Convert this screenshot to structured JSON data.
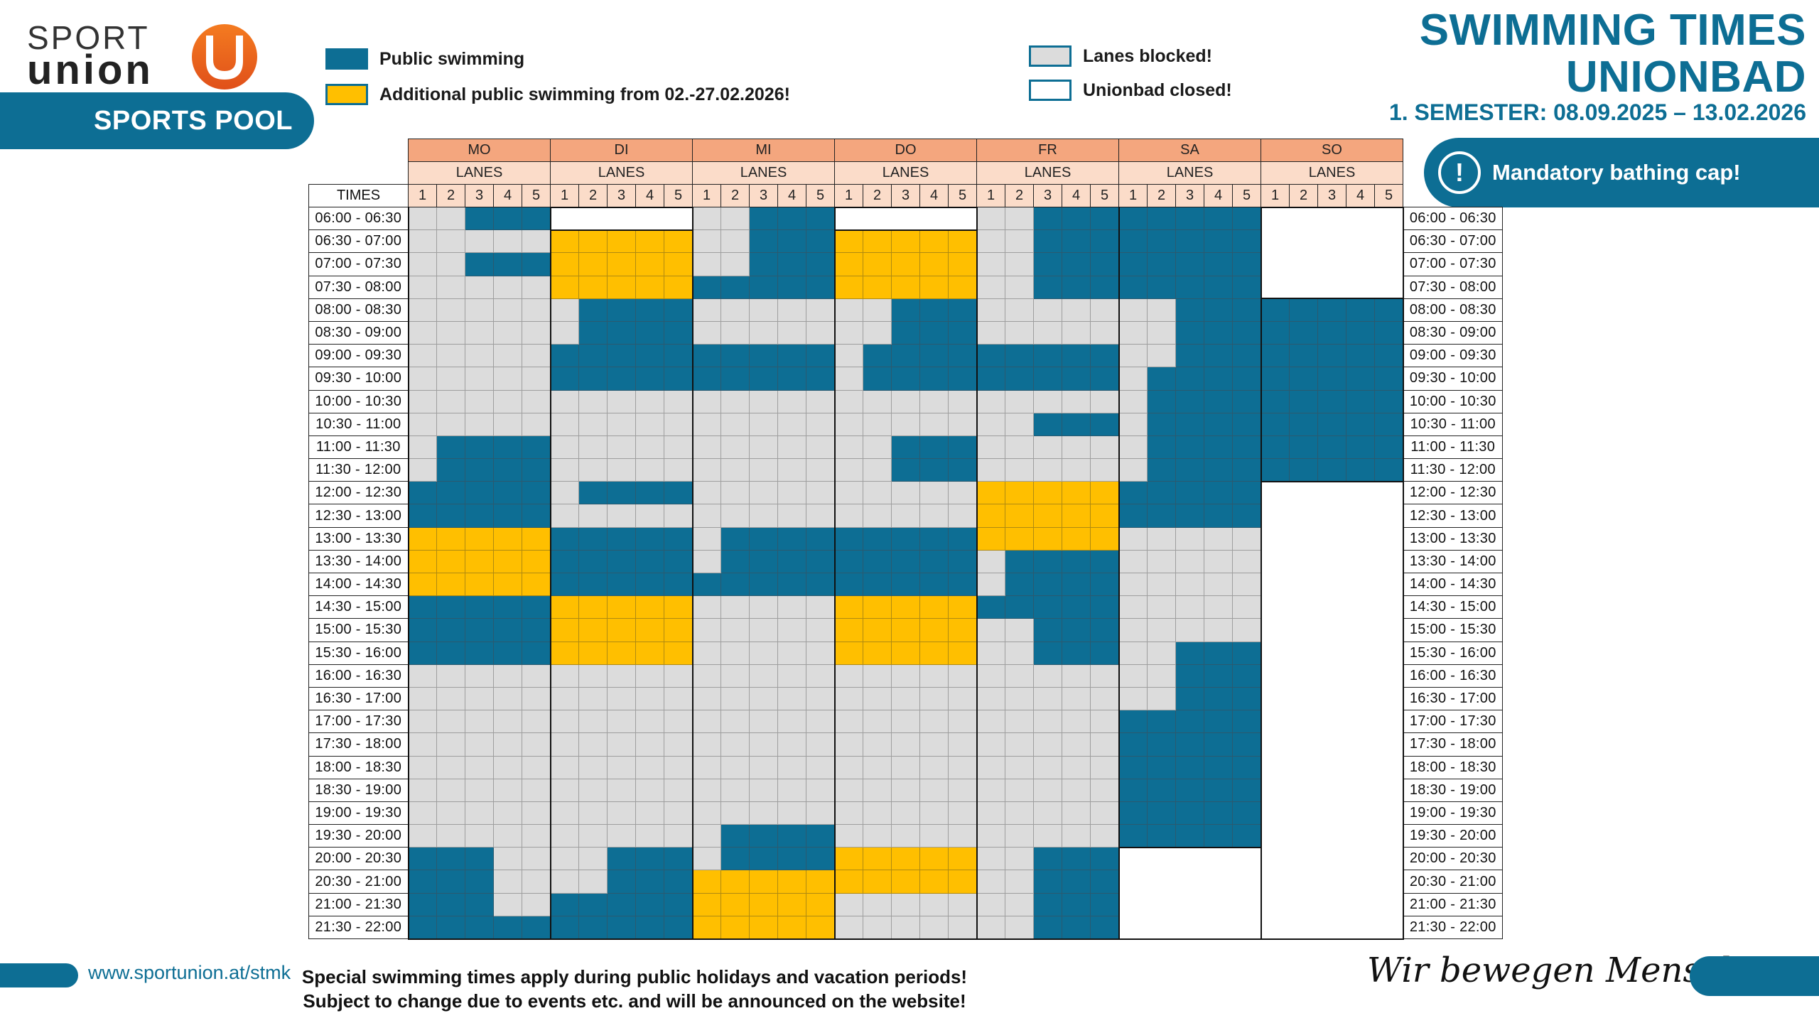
{
  "logo": {
    "line1": "SPORT",
    "line2": "union"
  },
  "pool_label": "SPORTS POOL",
  "legend": {
    "public": "Public swimming",
    "additional": "Additional public swimming from 02.-27.02.2026!",
    "blocked": "Lanes blocked!",
    "closed": "Unionbad closed!"
  },
  "title": {
    "line1": "SWIMMING TIMES",
    "line2": "UNIONBAD",
    "semester": "1. SEMESTER: 08.09.2025 – 13.02.2026"
  },
  "cap_notice": "Mandatory bathing cap!",
  "colors": {
    "brand": "#0d6e94",
    "public": "#0d6e94",
    "additional": "#ffbf00",
    "blocked": "#dcdcdc",
    "closed": "#ffffff",
    "day_header": "#f4a67e",
    "lanes_header": "#fbdcc9"
  },
  "table": {
    "times_header": "TIMES",
    "lanes_label": "LANES",
    "lanes": [
      "1",
      "2",
      "3",
      "4",
      "5"
    ],
    "days": [
      "MO",
      "DI",
      "MI",
      "DO",
      "FR",
      "SA",
      "SO"
    ],
    "slots": [
      "06:00 - 06:30",
      "06:30 - 07:00",
      "07:00 - 07:30",
      "07:30 - 08:00",
      "08:00 - 08:30",
      "08:30 - 09:00",
      "09:00 - 09:30",
      "09:30 - 10:00",
      "10:00 - 10:30",
      "10:30 - 11:00",
      "11:00 - 11:30",
      "11:30 - 12:00",
      "12:00 - 12:30",
      "12:30 - 13:00",
      "13:00 - 13:30",
      "13:30 - 14:00",
      "14:00 - 14:30",
      "14:30 - 15:00",
      "15:00 - 15:30",
      "15:30 - 16:00",
      "16:00 - 16:30",
      "16:30 - 17:00",
      "17:00 - 17:30",
      "17:30 - 18:00",
      "18:00 - 18:30",
      "18:30 - 19:00",
      "19:00 - 19:30",
      "19:30 - 20:00",
      "20:00 - 20:30",
      "20:30 - 21:00",
      "21:00 - 21:30",
      "21:30 - 22:00"
    ],
    "status_legend": {
      "P": "public swimming",
      "A": "additional public swimming",
      "B": "lanes blocked",
      "W": "closed"
    },
    "grid": {
      "MO": [
        "BBPPP",
        "BBBBB",
        "BBPPP",
        "BBBBB",
        "BBBBB",
        "BBBBB",
        "BBBBB",
        "BBBBB",
        "BBBBB",
        "BBBBB",
        "BPPPP",
        "BPPPP",
        "PPPPP",
        "PPPPP",
        "AAAAA",
        "AAAAA",
        "AAAAA",
        "PPPPP",
        "PPPPP",
        "PPPPP",
        "BBBBB",
        "BBBBB",
        "BBBBB",
        "BBBBB",
        "BBBBB",
        "BBBBB",
        "BBBBB",
        "BBBBB",
        "PPPBB",
        "PPPBB",
        "PPPBB",
        "PPPPP"
      ],
      "DI": [
        "WWWWW",
        "AAAAA",
        "AAAAA",
        "AAAAA",
        "BPPPP",
        "BPPPP",
        "PPPPP",
        "PPPPP",
        "BBBBB",
        "BBBBB",
        "BBBBB",
        "BBBBB",
        "BPPPP",
        "BBBBB",
        "PPPPP",
        "PPPPP",
        "PPPPP",
        "AAAAA",
        "AAAAA",
        "AAAAA",
        "BBBBB",
        "BBBBB",
        "BBBBB",
        "BBBBB",
        "BBBBB",
        "BBBBB",
        "BBBBB",
        "BBBBB",
        "BBPPP",
        "BBPPP",
        "PPPPP",
        "PPPPP"
      ],
      "MI": [
        "BBPPP",
        "BBPPP",
        "BBPPP",
        "PPPPP",
        "BBBBB",
        "BBBBB",
        "PPPPP",
        "PPPPP",
        "BBBBB",
        "BBBBB",
        "BBBBB",
        "BBBBB",
        "BBBBB",
        "BBBBB",
        "BPPPP",
        "BPPPP",
        "PPPPP",
        "BBBBB",
        "BBBBB",
        "BBBBB",
        "BBBBB",
        "BBBBB",
        "BBBBB",
        "BBBBB",
        "BBBBB",
        "BBBBB",
        "BBBBB",
        "BPPPP",
        "BPPPP",
        "AAAAA",
        "AAAAA",
        "AAAAA"
      ],
      "DO": [
        "WWWWW",
        "AAAAA",
        "AAAAA",
        "AAAAA",
        "BBPPP",
        "BBPPP",
        "BPPPP",
        "BPPPP",
        "BBBBB",
        "BBBBB",
        "BBPPP",
        "BBPPP",
        "BBBBB",
        "BBBBB",
        "PPPPP",
        "PPPPP",
        "PPPPP",
        "AAAAA",
        "AAAAA",
        "AAAAA",
        "BBBBB",
        "BBBBB",
        "BBBBB",
        "BBBBB",
        "BBBBB",
        "BBBBB",
        "BBBBB",
        "BBBBB",
        "AAAAA",
        "AAAAA",
        "BBBBB",
        "BBBBB"
      ],
      "FR": [
        "BBPPP",
        "BBPPP",
        "BBPPP",
        "BBPPP",
        "BBBBB",
        "BBBBB",
        "PPPPP",
        "PPPPP",
        "BBBBB",
        "BBPPP",
        "BBBBB",
        "BBBBB",
        "AAAAA",
        "AAAAA",
        "AAAAA",
        "BPPPP",
        "BPPPP",
        "PPPPP",
        "BBPPP",
        "BBPPP",
        "BBBBB",
        "BBBBB",
        "BBBBB",
        "BBBBB",
        "BBBBB",
        "BBBBB",
        "BBBBB",
        "BBBBB",
        "BBPPP",
        "BBPPP",
        "BBPPP",
        "BBPPP"
      ],
      "SA": [
        "PPPPP",
        "PPPPP",
        "PPPPP",
        "PPPPP",
        "BBPPP",
        "BBPPP",
        "BBPPP",
        "BPPPP",
        "BPPPP",
        "BPPPP",
        "BPPPP",
        "BPPPP",
        "PPPPP",
        "PPPPP",
        "BBBBB",
        "BBBBB",
        "BBBBB",
        "BBBBB",
        "BBBBB",
        "BBPPP",
        "BBPPP",
        "BBPPP",
        "PPPPP",
        "PPPPP",
        "PPPPP",
        "PPPPP",
        "PPPPP",
        "PPPPP",
        "WWWWW",
        "WWWWW",
        "WWWWW",
        "WWWWW"
      ],
      "SO": [
        "WWWWW",
        "WWWWW",
        "WWWWW",
        "WWWWW",
        "PPPPP",
        "PPPPP",
        "PPPPP",
        "PPPPP",
        "PPPPP",
        "PPPPP",
        "PPPPP",
        "PPPPP",
        "WWWWW",
        "WWWWW",
        "WWWWW",
        "WWWWW",
        "WWWWW",
        "WWWWW",
        "WWWWW",
        "WWWWW",
        "WWWWW",
        "WWWWW",
        "WWWWW",
        "WWWWW",
        "WWWWW",
        "WWWWW",
        "WWWWW",
        "WWWWW",
        "WWWWW",
        "WWWWW",
        "WWWWW",
        "WWWWW"
      ]
    }
  },
  "footer": {
    "url": "www.sportunion.at/stmk",
    "notice_line1": "Special swimming times apply during public holidays and vacation periods!",
    "notice_line2": "Subject to change due to events etc. and will be announced on the website!",
    "slogan": "Wir bewegen Menschen"
  }
}
